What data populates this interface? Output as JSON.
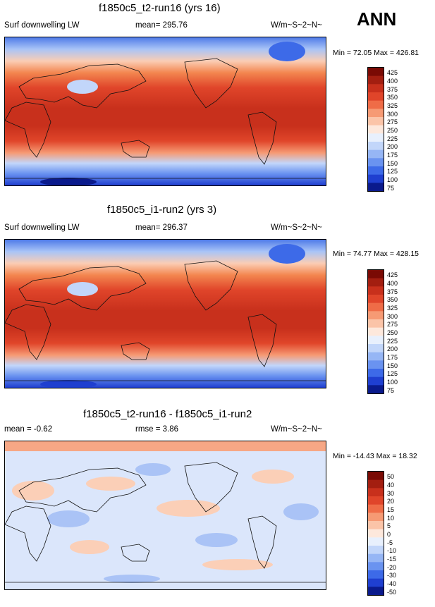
{
  "season": "ANN",
  "colors": {
    "abs": [
      "#0a1a8c",
      "#1f3fd0",
      "#3d6ae8",
      "#6a93f0",
      "#96b6f5",
      "#c2d6fa",
      "#e8f0fd",
      "#fde8dc",
      "#fbc4a8",
      "#f69a74",
      "#ef6c47",
      "#e0452a",
      "#c8301c",
      "#a31e10",
      "#7a0a04"
    ],
    "diff": [
      "#0a1a8c",
      "#1f3fd0",
      "#3d6ae8",
      "#6a93f0",
      "#96b6f5",
      "#c2d6fa",
      "#e8f0fd",
      "#fde8dc",
      "#fbc4a8",
      "#f69a74",
      "#ef6c47",
      "#e0452a",
      "#c8301c",
      "#a31e10",
      "#7a0a04"
    ]
  },
  "panels": [
    {
      "title": "f1850c5_t2-run16 (yrs 16)",
      "left_label": "Surf downwelling LW",
      "center_label": "mean=  295.76",
      "units": "W/m~S~2~N~",
      "minmax": "Min =  72.05 Max = 426.81",
      "kind": "abs"
    },
    {
      "title": "f1850c5_i1-run2 (yrs 3)",
      "left_label": "Surf downwelling LW",
      "center_label": "mean=  296.37",
      "units": "W/m~S~2~N~",
      "minmax": "Min =  74.77 Max = 428.15",
      "kind": "abs"
    },
    {
      "title": "f1850c5_t2-run16 - f1850c5_i1-run2",
      "left_label": "mean =  -0.62",
      "center_label": "rmse =   3.86",
      "units": "W/m~S~2~N~",
      "minmax": "Min = -14.43 Max =  18.32",
      "kind": "diff"
    }
  ],
  "chart_data": [
    {
      "type": "heatmap",
      "title": "f1850c5_t2-run16 (yrs 16)",
      "variable": "Surf downwelling LW",
      "units": "W/m~S~2~N~",
      "mean": 295.76,
      "min": 72.05,
      "max": 426.81,
      "levels": [
        75,
        100,
        125,
        150,
        175,
        200,
        225,
        250,
        275,
        300,
        325,
        350,
        375,
        400,
        425
      ]
    },
    {
      "type": "heatmap",
      "title": "f1850c5_i1-run2 (yrs 3)",
      "variable": "Surf downwelling LW",
      "units": "W/m~S~2~N~",
      "mean": 296.37,
      "min": 74.77,
      "max": 428.15,
      "levels": [
        75,
        100,
        125,
        150,
        175,
        200,
        225,
        250,
        275,
        300,
        325,
        350,
        375,
        400,
        425
      ]
    },
    {
      "type": "heatmap",
      "title": "f1850c5_t2-run16 - f1850c5_i1-run2",
      "units": "W/m~S~2~N~",
      "mean": -0.62,
      "rmse": 3.86,
      "min": -14.43,
      "max": 18.32,
      "levels": [
        -50,
        -40,
        -30,
        -20,
        -15,
        -10,
        -5,
        0,
        5,
        10,
        15,
        20,
        30,
        40,
        50
      ]
    }
  ],
  "colorbar_labels": {
    "abs": [
      "425",
      "400",
      "375",
      "350",
      "325",
      "300",
      "275",
      "250",
      "225",
      "200",
      "175",
      "150",
      "125",
      "100",
      "75"
    ],
    "diff": [
      "50",
      "40",
      "30",
      "20",
      "15",
      "10",
      "5",
      "0",
      "-5",
      "-10",
      "-15",
      "-20",
      "-30",
      "-40",
      "-50"
    ]
  }
}
